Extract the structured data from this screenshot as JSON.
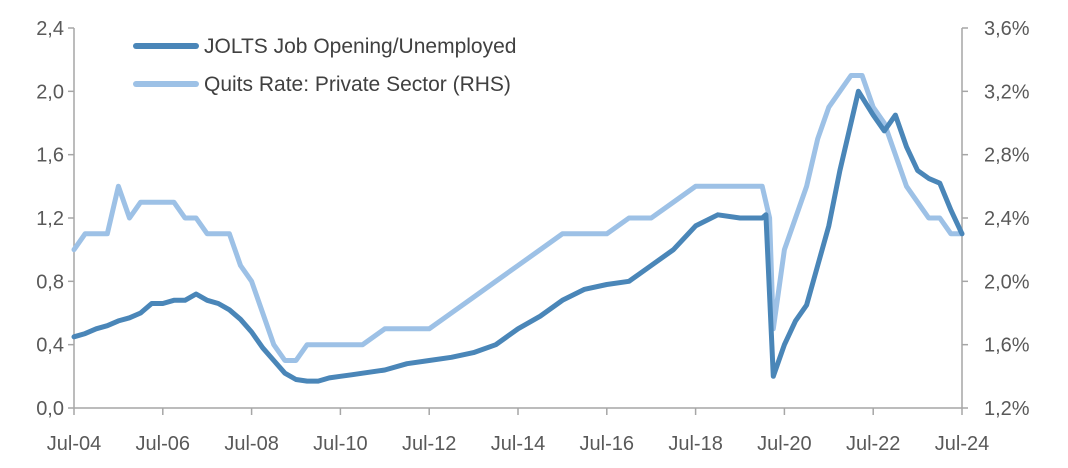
{
  "chart_data": {
    "type": "line",
    "title": "",
    "xlabel": "",
    "ylabel": "",
    "x_range": [
      "2004-07",
      "2024-07"
    ],
    "x_ticks": [
      "Jul-04",
      "Jul-06",
      "Jul-08",
      "Jul-10",
      "Jul-12",
      "Jul-14",
      "Jul-16",
      "Jul-18",
      "Jul-20",
      "Jul-22",
      "Jul-24"
    ],
    "ylim": [
      0,
      2.4
    ],
    "y_ticks": [
      "0,0",
      "0,4",
      "0,8",
      "1,2",
      "1,6",
      "2,0",
      "2,4"
    ],
    "y2lim": [
      1.2,
      3.6
    ],
    "y2_ticks": [
      "1,2%",
      "1,6%",
      "2,0%",
      "2,4%",
      "2,8%",
      "3,2%",
      "3,6%"
    ],
    "legend_position": "top-left",
    "grid": false,
    "series": [
      {
        "name": "JOLTS Job Opening/Unemployed",
        "axis": "left",
        "color": "#4a86b8",
        "points": [
          [
            "2004-07",
            0.45
          ],
          [
            "2004-10",
            0.47
          ],
          [
            "2005-01",
            0.5
          ],
          [
            "2005-04",
            0.52
          ],
          [
            "2005-07",
            0.55
          ],
          [
            "2005-10",
            0.57
          ],
          [
            "2006-01",
            0.6
          ],
          [
            "2006-04",
            0.66
          ],
          [
            "2006-07",
            0.66
          ],
          [
            "2006-10",
            0.68
          ],
          [
            "2007-01",
            0.68
          ],
          [
            "2007-04",
            0.72
          ],
          [
            "2007-07",
            0.68
          ],
          [
            "2007-10",
            0.66
          ],
          [
            "2008-01",
            0.62
          ],
          [
            "2008-04",
            0.56
          ],
          [
            "2008-07",
            0.48
          ],
          [
            "2008-10",
            0.38
          ],
          [
            "2009-01",
            0.3
          ],
          [
            "2009-04",
            0.22
          ],
          [
            "2009-07",
            0.18
          ],
          [
            "2009-10",
            0.17
          ],
          [
            "2010-01",
            0.17
          ],
          [
            "2010-04",
            0.19
          ],
          [
            "2010-07",
            0.2
          ],
          [
            "2010-10",
            0.21
          ],
          [
            "2011-01",
            0.22
          ],
          [
            "2011-07",
            0.24
          ],
          [
            "2012-01",
            0.28
          ],
          [
            "2012-07",
            0.3
          ],
          [
            "2013-01",
            0.32
          ],
          [
            "2013-07",
            0.35
          ],
          [
            "2014-01",
            0.4
          ],
          [
            "2014-07",
            0.5
          ],
          [
            "2015-01",
            0.58
          ],
          [
            "2015-07",
            0.68
          ],
          [
            "2016-01",
            0.75
          ],
          [
            "2016-07",
            0.78
          ],
          [
            "2017-01",
            0.8
          ],
          [
            "2017-07",
            0.9
          ],
          [
            "2018-01",
            1.0
          ],
          [
            "2018-07",
            1.15
          ],
          [
            "2019-01",
            1.22
          ],
          [
            "2019-07",
            1.2
          ],
          [
            "2020-01",
            1.2
          ],
          [
            "2020-02",
            1.22
          ],
          [
            "2020-04",
            0.2
          ],
          [
            "2020-07",
            0.4
          ],
          [
            "2020-10",
            0.55
          ],
          [
            "2021-01",
            0.65
          ],
          [
            "2021-04",
            0.9
          ],
          [
            "2021-07",
            1.15
          ],
          [
            "2021-10",
            1.5
          ],
          [
            "2022-01",
            1.8
          ],
          [
            "2022-03",
            2.0
          ],
          [
            "2022-07",
            1.85
          ],
          [
            "2022-10",
            1.75
          ],
          [
            "2023-01",
            1.85
          ],
          [
            "2023-04",
            1.65
          ],
          [
            "2023-07",
            1.5
          ],
          [
            "2023-10",
            1.45
          ],
          [
            "2024-01",
            1.42
          ],
          [
            "2024-04",
            1.25
          ],
          [
            "2024-07",
            1.1
          ]
        ]
      },
      {
        "name": "Quits Rate: Private Sector (RHS)",
        "axis": "right",
        "color": "#9dc1e6",
        "points": [
          [
            "2004-07",
            2.2
          ],
          [
            "2004-10",
            2.3
          ],
          [
            "2005-01",
            2.3
          ],
          [
            "2005-04",
            2.3
          ],
          [
            "2005-07",
            2.6
          ],
          [
            "2005-10",
            2.4
          ],
          [
            "2006-01",
            2.5
          ],
          [
            "2006-04",
            2.5
          ],
          [
            "2006-07",
            2.5
          ],
          [
            "2006-10",
            2.5
          ],
          [
            "2007-01",
            2.4
          ],
          [
            "2007-04",
            2.4
          ],
          [
            "2007-07",
            2.3
          ],
          [
            "2007-10",
            2.3
          ],
          [
            "2008-01",
            2.3
          ],
          [
            "2008-04",
            2.1
          ],
          [
            "2008-07",
            2.0
          ],
          [
            "2008-10",
            1.8
          ],
          [
            "2009-01",
            1.6
          ],
          [
            "2009-04",
            1.5
          ],
          [
            "2009-07",
            1.5
          ],
          [
            "2009-10",
            1.6
          ],
          [
            "2010-01",
            1.6
          ],
          [
            "2010-04",
            1.6
          ],
          [
            "2010-07",
            1.6
          ],
          [
            "2011-01",
            1.6
          ],
          [
            "2011-07",
            1.7
          ],
          [
            "2012-01",
            1.7
          ],
          [
            "2012-07",
            1.7
          ],
          [
            "2013-01",
            1.8
          ],
          [
            "2013-07",
            1.9
          ],
          [
            "2014-01",
            2.0
          ],
          [
            "2014-07",
            2.1
          ],
          [
            "2015-01",
            2.2
          ],
          [
            "2015-07",
            2.3
          ],
          [
            "2016-01",
            2.3
          ],
          [
            "2016-07",
            2.3
          ],
          [
            "2017-01",
            2.4
          ],
          [
            "2017-07",
            2.4
          ],
          [
            "2018-01",
            2.5
          ],
          [
            "2018-07",
            2.6
          ],
          [
            "2019-01",
            2.6
          ],
          [
            "2019-07",
            2.6
          ],
          [
            "2020-01",
            2.6
          ],
          [
            "2020-03",
            2.4
          ],
          [
            "2020-04",
            1.7
          ],
          [
            "2020-07",
            2.2
          ],
          [
            "2020-10",
            2.4
          ],
          [
            "2021-01",
            2.6
          ],
          [
            "2021-04",
            2.9
          ],
          [
            "2021-07",
            3.1
          ],
          [
            "2021-10",
            3.2
          ],
          [
            "2022-01",
            3.3
          ],
          [
            "2022-04",
            3.3
          ],
          [
            "2022-07",
            3.1
          ],
          [
            "2022-10",
            3.0
          ],
          [
            "2023-01",
            2.8
          ],
          [
            "2023-04",
            2.6
          ],
          [
            "2023-07",
            2.5
          ],
          [
            "2023-10",
            2.4
          ],
          [
            "2024-01",
            2.4
          ],
          [
            "2024-04",
            2.3
          ],
          [
            "2024-07",
            2.3
          ]
        ]
      }
    ]
  }
}
